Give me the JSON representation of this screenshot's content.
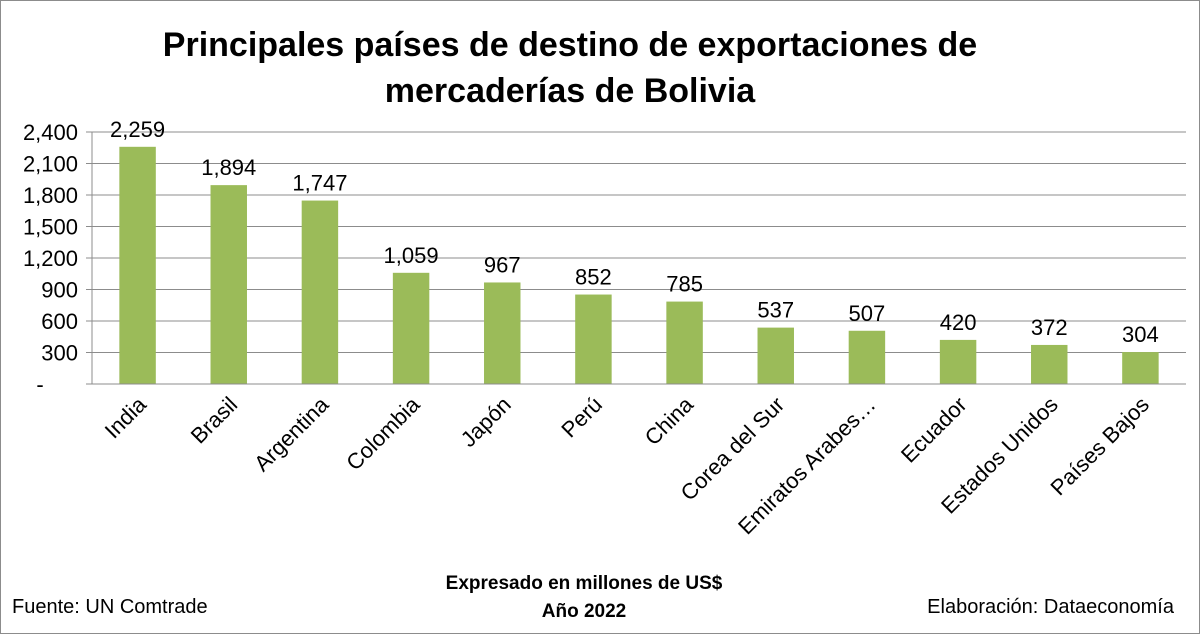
{
  "chart_data": {
    "type": "bar",
    "title_lines": [
      "Principales países de destino de exportaciones de",
      "mercaderías de Bolivia"
    ],
    "categories": [
      "India",
      "Brasil",
      "Argentina",
      "Colombia",
      "Japón",
      "Perú",
      "China",
      "Corea del Sur",
      "Emiratos Arabes…",
      "Ecuador",
      "Estados Unidos",
      "Países Bajos"
    ],
    "values": [
      2259,
      1894,
      1747,
      1059,
      967,
      852,
      785,
      537,
      507,
      420,
      372,
      304
    ],
    "data_labels": [
      "2,259",
      "1,894",
      "1,747",
      "1,059",
      "967",
      "852",
      "785",
      "537",
      "507",
      "420",
      "372",
      "304"
    ],
    "ylim": [
      0,
      2400
    ],
    "yticks": [
      0,
      300,
      600,
      900,
      1200,
      1500,
      1800,
      2100,
      2400
    ],
    "ytick_labels": [
      "-",
      "300",
      "600",
      "900",
      "1,200",
      "1,500",
      "1,800",
      "2,100",
      "2,400"
    ],
    "grid": true,
    "bar_color": "#9BBB59",
    "xlabel": "",
    "ylabel": ""
  },
  "footer": {
    "source": "Fuente: UN Comtrade",
    "note_line1": "Expresado en millones de US$",
    "note_line2": "Año 2022",
    "credit": "Elaboración: Dataeconomía"
  }
}
